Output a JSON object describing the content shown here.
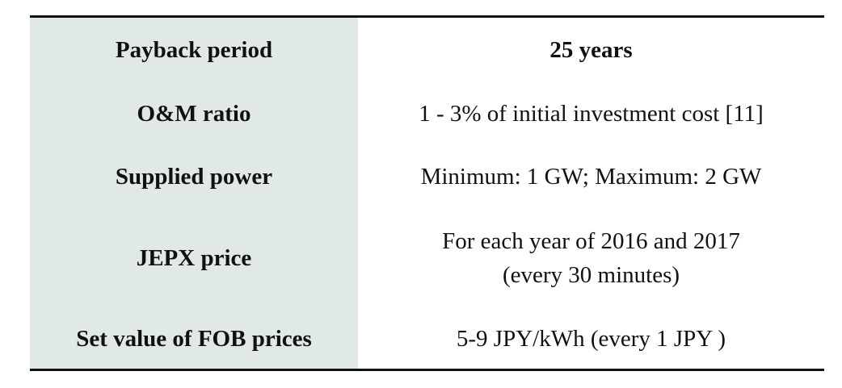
{
  "table": {
    "rows": [
      {
        "label": "Payback period",
        "value": [
          "25 years"
        ]
      },
      {
        "label": "O&M ratio",
        "value": [
          "1 - 3% of initial investment cost [11]"
        ]
      },
      {
        "label": "Supplied power",
        "value": [
          "Minimum: 1 GW; Maximum: 2 GW"
        ]
      },
      {
        "label": "JEPX price",
        "value": [
          "For each year of 2016 and 2017",
          "(every 30 minutes)"
        ]
      },
      {
        "label": "Set value of FOB prices",
        "value": [
          "5-9 JPY/kWh (every 1 JPY )"
        ]
      }
    ]
  }
}
